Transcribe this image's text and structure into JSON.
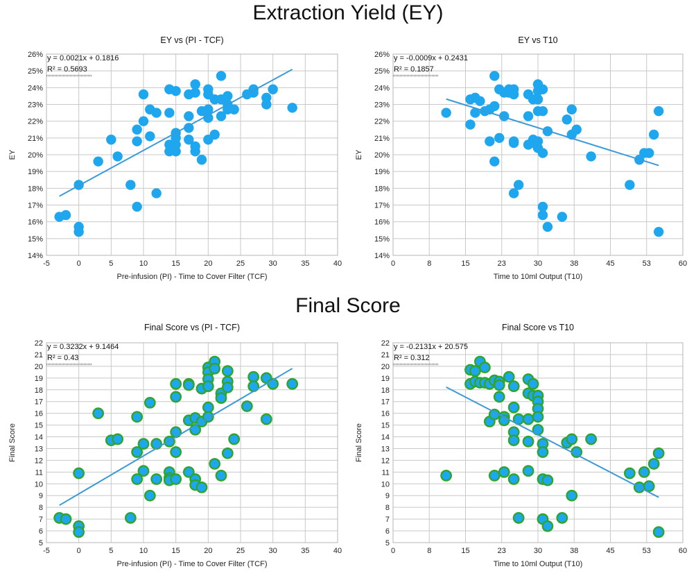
{
  "sections": {
    "ey_title": "Extraction Yield (EY)",
    "fs_title": "Final Score"
  },
  "chart_data": [
    {
      "type": "scatter",
      "title": "EY vs (PI - TCF)",
      "xlabel": "Pre-infusion (PI) - Time to Cover Filter (TCF)",
      "ylabel": "EY",
      "xlim": [
        -5,
        40
      ],
      "ylim": [
        14,
        26
      ],
      "xticks": [
        -5,
        0,
        5,
        10,
        15,
        20,
        25,
        30,
        35,
        40
      ],
      "xtick_labels": [
        "-5",
        "0",
        "5",
        "10",
        "15",
        "20",
        "25",
        "30",
        "35",
        "40"
      ],
      "yticks": [
        14,
        15,
        16,
        17,
        18,
        19,
        20,
        21,
        22,
        23,
        24,
        25,
        26
      ],
      "ytick_labels": [
        "14%",
        "15%",
        "16%",
        "17%",
        "18%",
        "19%",
        "20%",
        "21%",
        "22%",
        "23%",
        "24%",
        "25%",
        "26%"
      ],
      "grid": true,
      "marker_color": "#1ea7ee",
      "marker_edge": "#1ea7ee",
      "trendline_color": "#3a9ad9",
      "equation": "y = 0.0021x + 0.1816",
      "r2": "R² = 0.5693",
      "trend": {
        "slope": 0.21,
        "intercept": 18.16,
        "x_range": [
          -3,
          33
        ]
      },
      "points": [
        [
          -3,
          16.3
        ],
        [
          -2,
          16.4
        ],
        [
          0,
          18.2
        ],
        [
          0,
          15.7
        ],
        [
          0,
          15.4
        ],
        [
          3,
          19.6
        ],
        [
          5,
          20.9
        ],
        [
          6,
          19.9
        ],
        [
          8,
          18.2
        ],
        [
          9,
          21.5
        ],
        [
          9,
          20.8
        ],
        [
          9,
          16.9
        ],
        [
          10,
          22.0
        ],
        [
          10,
          23.6
        ],
        [
          11,
          22.7
        ],
        [
          11,
          21.1
        ],
        [
          12,
          22.5
        ],
        [
          12,
          17.7
        ],
        [
          14,
          23.9
        ],
        [
          14,
          22.5
        ],
        [
          14,
          20.6
        ],
        [
          14,
          20.2
        ],
        [
          15,
          23.8
        ],
        [
          15,
          21.3
        ],
        [
          15,
          21.0
        ],
        [
          15,
          20.6
        ],
        [
          15,
          20.2
        ],
        [
          17,
          23.6
        ],
        [
          17,
          22.3
        ],
        [
          17,
          21.6
        ],
        [
          17,
          20.9
        ],
        [
          18,
          24.2
        ],
        [
          18,
          23.7
        ],
        [
          18,
          20.5
        ],
        [
          18,
          20.2
        ],
        [
          19,
          22.6
        ],
        [
          19,
          19.7
        ],
        [
          20,
          23.9
        ],
        [
          20,
          23.6
        ],
        [
          20,
          22.7
        ],
        [
          20,
          22.2
        ],
        [
          20,
          20.9
        ],
        [
          21,
          23.3
        ],
        [
          21,
          21.2
        ],
        [
          22,
          24.7
        ],
        [
          22,
          23.3
        ],
        [
          22,
          22.3
        ],
        [
          23,
          23.5
        ],
        [
          23,
          23.0
        ],
        [
          23,
          22.7
        ],
        [
          24,
          22.7
        ],
        [
          26,
          23.6
        ],
        [
          27,
          23.9
        ],
        [
          27,
          23.7
        ],
        [
          29,
          23.4
        ],
        [
          29,
          23.0
        ],
        [
          30,
          23.9
        ],
        [
          33,
          22.8
        ]
      ]
    },
    {
      "type": "scatter",
      "title": "EY vs T10",
      "xlabel": "Time to 10ml Output (T10)",
      "ylabel": "EY",
      "xlim": [
        0,
        60
      ],
      "ylim": [
        14,
        26
      ],
      "xticks": [
        0,
        7.5,
        15,
        22.5,
        30,
        37.5,
        45,
        52.5,
        60
      ],
      "xtick_labels": [
        "0",
        "8",
        "15",
        "23",
        "30",
        "38",
        "45",
        "53",
        "60"
      ],
      "yticks": [
        14,
        15,
        16,
        17,
        18,
        19,
        20,
        21,
        22,
        23,
        24,
        25,
        26
      ],
      "ytick_labels": [
        "14%",
        "15%",
        "16%",
        "17%",
        "18%",
        "19%",
        "20%",
        "21%",
        "22%",
        "23%",
        "24%",
        "25%",
        "26%"
      ],
      "grid": true,
      "marker_color": "#1ea7ee",
      "marker_edge": "#1ea7ee",
      "trendline_color": "#3a9ad9",
      "equation": "y = -0.0009x + 0.2431",
      "r2": "R² = 0.1857",
      "trend": {
        "slope": -0.09,
        "intercept": 24.31,
        "x_range": [
          11,
          55
        ]
      },
      "points": [
        [
          11,
          22.5
        ],
        [
          16,
          21.8
        ],
        [
          16,
          23.3
        ],
        [
          17,
          23.4
        ],
        [
          17,
          22.5
        ],
        [
          18,
          23.2
        ],
        [
          19,
          22.6
        ],
        [
          20,
          22.7
        ],
        [
          20,
          20.8
        ],
        [
          21,
          24.7
        ],
        [
          21,
          22.9
        ],
        [
          21,
          19.6
        ],
        [
          22,
          21.0
        ],
        [
          22,
          23.9
        ],
        [
          23,
          23.7
        ],
        [
          23,
          22.3
        ],
        [
          24,
          23.9
        ],
        [
          24,
          23.7
        ],
        [
          25,
          23.9
        ],
        [
          25,
          23.6
        ],
        [
          25,
          20.8
        ],
        [
          25,
          20.7
        ],
        [
          25,
          17.7
        ],
        [
          26,
          18.2
        ],
        [
          28,
          23.6
        ],
        [
          28,
          22.3
        ],
        [
          28,
          20.6
        ],
        [
          29,
          23.3
        ],
        [
          29,
          20.9
        ],
        [
          29,
          20.7
        ],
        [
          30,
          24.2
        ],
        [
          30,
          23.8
        ],
        [
          30,
          23.3
        ],
        [
          30,
          22.6
        ],
        [
          30,
          20.8
        ],
        [
          30,
          20.4
        ],
        [
          31,
          23.9
        ],
        [
          31,
          22.6
        ],
        [
          31,
          20.1
        ],
        [
          31,
          16.9
        ],
        [
          31,
          16.4
        ],
        [
          32,
          21.4
        ],
        [
          32,
          15.7
        ],
        [
          35,
          16.3
        ],
        [
          36,
          22.1
        ],
        [
          37,
          22.7
        ],
        [
          37,
          21.2
        ],
        [
          38,
          21.5
        ],
        [
          41,
          19.9
        ],
        [
          49,
          18.2
        ],
        [
          51,
          19.7
        ],
        [
          52,
          20.1
        ],
        [
          53,
          20.1
        ],
        [
          54,
          21.2
        ],
        [
          55,
          22.6
        ],
        [
          55,
          15.4
        ]
      ]
    },
    {
      "type": "scatter",
      "title": "Final Score vs (PI - TCF)",
      "xlabel": "Pre-infusion (PI) - Time to Cover Filter (TCF)",
      "ylabel": "Final Score",
      "xlim": [
        -5,
        40
      ],
      "ylim": [
        5,
        22
      ],
      "xticks": [
        -5,
        0,
        5,
        10,
        15,
        20,
        25,
        30,
        35,
        40
      ],
      "xtick_labels": [
        "-5",
        "0",
        "5",
        "10",
        "15",
        "20",
        "25",
        "30",
        "35",
        "40"
      ],
      "yticks": [
        5,
        6,
        7,
        8,
        9,
        10,
        11,
        12,
        13,
        14,
        15,
        16,
        17,
        18,
        19,
        20,
        21,
        22
      ],
      "ytick_labels": [
        "5",
        "6",
        "7",
        "8",
        "9",
        "10",
        "11",
        "12",
        "13",
        "14",
        "15",
        "16",
        "17",
        "18",
        "19",
        "20",
        "21",
        "22"
      ],
      "grid": true,
      "marker_color": "#1ea7ee",
      "marker_edge": "#2fa52a",
      "trendline_color": "#3a9ad9",
      "equation": "y = 0.3232x + 9.1464",
      "r2": "R² = 0.43",
      "trend": {
        "slope": 0.3232,
        "intercept": 9.1464,
        "x_range": [
          -3,
          33
        ]
      },
      "points": [
        [
          -3,
          7.1
        ],
        [
          -2,
          7.0
        ],
        [
          0,
          10.9
        ],
        [
          0,
          6.4
        ],
        [
          0,
          5.9
        ],
        [
          3,
          16.0
        ],
        [
          5,
          13.7
        ],
        [
          6,
          13.8
        ],
        [
          8,
          7.1
        ],
        [
          9,
          15.7
        ],
        [
          9,
          12.7
        ],
        [
          9,
          10.4
        ],
        [
          10,
          13.4
        ],
        [
          10,
          11.1
        ],
        [
          11,
          16.9
        ],
        [
          11,
          9.0
        ],
        [
          12,
          13.4
        ],
        [
          12,
          10.4
        ],
        [
          14,
          13.6
        ],
        [
          14,
          11.0
        ],
        [
          14,
          10.5
        ],
        [
          14,
          10.3
        ],
        [
          15,
          18.5
        ],
        [
          15,
          17.4
        ],
        [
          15,
          14.4
        ],
        [
          15,
          12.7
        ],
        [
          15,
          10.4
        ],
        [
          17,
          18.5
        ],
        [
          17,
          18.4
        ],
        [
          17,
          15.4
        ],
        [
          17,
          11.0
        ],
        [
          18,
          15.6
        ],
        [
          18,
          14.6
        ],
        [
          18,
          10.4
        ],
        [
          18,
          9.9
        ],
        [
          19,
          18.1
        ],
        [
          19,
          15.3
        ],
        [
          19,
          9.7
        ],
        [
          20,
          19.9
        ],
        [
          20,
          19.5
        ],
        [
          20,
          18.9
        ],
        [
          20,
          18.3
        ],
        [
          20,
          16.5
        ],
        [
          20,
          15.7
        ],
        [
          21,
          20.4
        ],
        [
          21,
          19.8
        ],
        [
          21,
          11.7
        ],
        [
          22,
          17.7
        ],
        [
          22,
          17.3
        ],
        [
          22,
          10.7
        ],
        [
          23,
          19.6
        ],
        [
          23,
          18.7
        ],
        [
          23,
          18.2
        ],
        [
          23,
          12.6
        ],
        [
          24,
          13.8
        ],
        [
          26,
          16.6
        ],
        [
          27,
          19.1
        ],
        [
          27,
          18.3
        ],
        [
          29,
          19.0
        ],
        [
          29,
          15.5
        ],
        [
          30,
          18.5
        ],
        [
          33,
          18.5
        ]
      ]
    },
    {
      "type": "scatter",
      "title": "Final Score vs T10",
      "xlabel": "Time to 10ml Output (T10)",
      "ylabel": "Final Score",
      "xlim": [
        0,
        60
      ],
      "ylim": [
        5,
        22
      ],
      "xticks": [
        0,
        7.5,
        15,
        22.5,
        30,
        37.5,
        45,
        52.5,
        60
      ],
      "xtick_labels": [
        "0",
        "8",
        "15",
        "23",
        "30",
        "38",
        "45",
        "53",
        "60"
      ],
      "yticks": [
        5,
        6,
        7,
        8,
        9,
        10,
        11,
        12,
        13,
        14,
        15,
        16,
        17,
        18,
        19,
        20,
        21,
        22
      ],
      "ytick_labels": [
        "5",
        "6",
        "7",
        "8",
        "9",
        "10",
        "11",
        "12",
        "13",
        "14",
        "15",
        "16",
        "17",
        "18",
        "19",
        "20",
        "21",
        "22"
      ],
      "grid": true,
      "marker_color": "#1ea7ee",
      "marker_edge": "#2fa52a",
      "trendline_color": "#3a9ad9",
      "equation": "y = -0.2131x + 20.575",
      "r2": "R² = 0.312",
      "trend": {
        "slope": -0.2131,
        "intercept": 20.575,
        "x_range": [
          11,
          55
        ]
      },
      "points": [
        [
          11,
          10.7
        ],
        [
          16,
          19.7
        ],
        [
          16,
          18.5
        ],
        [
          17,
          19.6
        ],
        [
          17,
          18.7
        ],
        [
          18,
          20.4
        ],
        [
          18,
          18.6
        ],
        [
          19,
          19.9
        ],
        [
          19,
          18.6
        ],
        [
          20,
          18.5
        ],
        [
          20,
          15.3
        ],
        [
          21,
          18.8
        ],
        [
          21,
          15.9
        ],
        [
          21,
          10.7
        ],
        [
          22,
          18.7
        ],
        [
          22,
          18.4
        ],
        [
          22,
          17.4
        ],
        [
          23,
          15.7
        ],
        [
          23,
          15.4
        ],
        [
          23,
          11.0
        ],
        [
          24,
          19.1
        ],
        [
          25,
          18.3
        ],
        [
          25,
          16.5
        ],
        [
          25,
          14.4
        ],
        [
          25,
          13.7
        ],
        [
          25,
          10.4
        ],
        [
          26,
          15.5
        ],
        [
          26,
          7.1
        ],
        [
          28,
          18.9
        ],
        [
          28,
          17.7
        ],
        [
          28,
          15.5
        ],
        [
          28,
          13.6
        ],
        [
          28,
          11.1
        ],
        [
          29,
          18.5
        ],
        [
          29,
          17.5
        ],
        [
          30,
          17.5
        ],
        [
          30,
          17.0
        ],
        [
          30,
          16.4
        ],
        [
          30,
          15.7
        ],
        [
          30,
          14.6
        ],
        [
          31,
          13.4
        ],
        [
          31,
          12.7
        ],
        [
          31,
          10.4
        ],
        [
          31,
          7.0
        ],
        [
          32,
          10.3
        ],
        [
          32,
          6.4
        ],
        [
          35,
          7.1
        ],
        [
          36,
          13.5
        ],
        [
          37,
          13.8
        ],
        [
          37,
          9.0
        ],
        [
          38,
          12.7
        ],
        [
          41,
          13.8
        ],
        [
          49,
          10.9
        ],
        [
          51,
          9.7
        ],
        [
          52,
          11.0
        ],
        [
          53,
          9.8
        ],
        [
          54,
          11.7
        ],
        [
          55,
          12.6
        ],
        [
          55,
          5.9
        ]
      ]
    }
  ]
}
